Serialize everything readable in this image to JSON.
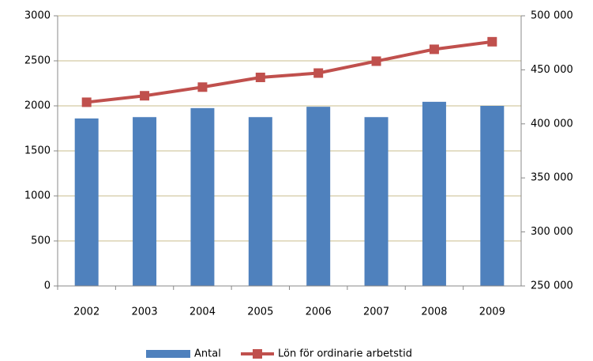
{
  "chart_data": {
    "type": "bar",
    "categories": [
      "2002",
      "2003",
      "2004",
      "2005",
      "2006",
      "2007",
      "2008",
      "2009"
    ],
    "series": [
      {
        "name": "Antal",
        "color": "#4f81bd",
        "values": [
          1860,
          1875,
          1975,
          1875,
          1990,
          1875,
          2045,
          2000
        ]
      },
      {
        "name": "Lön för ordinarie arbetstid",
        "color": "#c0504d",
        "type": "line",
        "axis": "y2",
        "values": [
          420000,
          426000,
          434000,
          443000,
          447000,
          458000,
          469000,
          476000
        ]
      }
    ],
    "ylim": [
      0,
      3000
    ],
    "yticks": [
      0,
      500,
      1000,
      1500,
      2000,
      2500,
      3000
    ],
    "y2lim": [
      250000,
      500000
    ],
    "y2ticks": [
      {
        "value": 250000,
        "label": "250 000"
      },
      {
        "value": 300000,
        "label": "300 000"
      },
      {
        "value": 350000,
        "label": "350 000"
      },
      {
        "value": 400000,
        "label": "400 000"
      },
      {
        "value": 450000,
        "label": "450 000"
      },
      {
        "value": 500000,
        "label": "500 000"
      }
    ],
    "grid": true,
    "legend": "bottom"
  }
}
